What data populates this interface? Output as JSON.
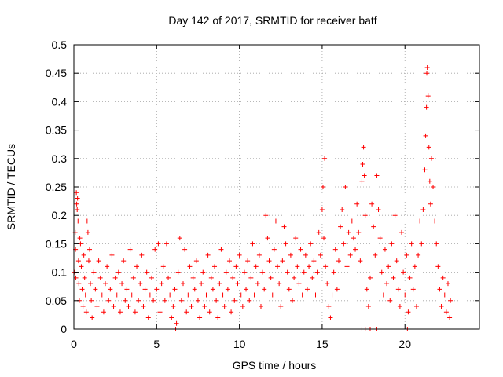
{
  "chart_data": {
    "type": "scatter",
    "title": "Day 142 of 2017, SRMTID for receiver batf",
    "xlabel": "GPS time / hours",
    "ylabel": "SRMTID / TECUs",
    "xlim": [
      0,
      24.5
    ],
    "ylim": [
      0,
      0.5
    ],
    "xticks": [
      0,
      5,
      10,
      15,
      20
    ],
    "yticks": [
      0,
      0.05,
      0.1,
      0.15,
      0.2,
      0.25,
      0.3,
      0.35,
      0.4,
      0.45,
      0.5
    ],
    "xtick_labels": [
      "0",
      "5",
      "10",
      "15",
      "20"
    ],
    "ytick_labels": [
      "0",
      "0.05",
      "0.1",
      "0.15",
      "0.2",
      "0.25",
      "0.3",
      "0.35",
      "0.4",
      "0.45",
      "0.5"
    ],
    "grid": true,
    "marker": "+",
    "color": "#ff0000",
    "series": [
      {
        "name": "SRMTID",
        "points": [
          [
            0.05,
            0.1
          ],
          [
            0.08,
            0.17
          ],
          [
            0.1,
            0.14
          ],
          [
            0.12,
            0.09
          ],
          [
            0.15,
            0.24
          ],
          [
            0.17,
            0.22
          ],
          [
            0.2,
            0.21
          ],
          [
            0.22,
            0.23
          ],
          [
            0.25,
            0.19
          ],
          [
            0.28,
            0.12
          ],
          [
            0.3,
            0.08
          ],
          [
            0.33,
            0.05
          ],
          [
            0.36,
            0.16
          ],
          [
            0.4,
            0.15
          ],
          [
            0.45,
            0.11
          ],
          [
            0.5,
            0.07
          ],
          [
            0.55,
            0.04
          ],
          [
            0.6,
            0.13
          ],
          [
            0.65,
            0.09
          ],
          [
            0.7,
            0.06
          ],
          [
            0.75,
            0.03
          ],
          [
            0.8,
            0.19
          ],
          [
            0.85,
            0.17
          ],
          [
            0.9,
            0.12
          ],
          [
            0.95,
            0.14
          ],
          [
            1.0,
            0.08
          ],
          [
            1.05,
            0.05
          ],
          [
            1.1,
            0.02
          ],
          [
            1.2,
            0.1
          ],
          [
            1.3,
            0.07
          ],
          [
            1.4,
            0.04
          ],
          [
            1.5,
            0.12
          ],
          [
            1.6,
            0.09
          ],
          [
            1.7,
            0.06
          ],
          [
            1.8,
            0.03
          ],
          [
            1.9,
            0.08
          ],
          [
            2.0,
            0.11
          ],
          [
            2.1,
            0.05
          ],
          [
            2.2,
            0.07
          ],
          [
            2.3,
            0.13
          ],
          [
            2.4,
            0.04
          ],
          [
            2.5,
            0.09
          ],
          [
            2.6,
            0.06
          ],
          [
            2.7,
            0.1
          ],
          [
            2.8,
            0.03
          ],
          [
            2.9,
            0.08
          ],
          [
            3.0,
            0.12
          ],
          [
            3.1,
            0.05
          ],
          [
            3.2,
            0.07
          ],
          [
            3.3,
            0.04
          ],
          [
            3.4,
            0.14
          ],
          [
            3.5,
            0.06
          ],
          [
            3.6,
            0.09
          ],
          [
            3.7,
            0.03
          ],
          [
            3.8,
            0.11
          ],
          [
            3.9,
            0.05
          ],
          [
            4.0,
            0.08
          ],
          [
            4.1,
            0.13
          ],
          [
            4.2,
            0.04
          ],
          [
            4.3,
            0.07
          ],
          [
            4.4,
            0.1
          ],
          [
            4.5,
            0.02
          ],
          [
            4.6,
            0.06
          ],
          [
            4.7,
            0.09
          ],
          [
            4.8,
            0.05
          ],
          [
            4.9,
            0.14
          ],
          [
            5.0,
            0.07
          ],
          [
            5.1,
            0.15
          ],
          [
            5.2,
            0.03
          ],
          [
            5.3,
            0.08
          ],
          [
            5.4,
            0.11
          ],
          [
            5.5,
            0.05
          ],
          [
            5.6,
            0.15
          ],
          [
            5.7,
            0.09
          ],
          [
            5.8,
            0.06
          ],
          [
            5.9,
            0.02
          ],
          [
            6.0,
            0.04
          ],
          [
            6.1,
            0.07
          ],
          [
            6.2,
            0.01
          ],
          [
            6.3,
            0.1
          ],
          [
            6.4,
            0.16
          ],
          [
            6.5,
            0.05
          ],
          [
            6.6,
            0.08
          ],
          [
            6.7,
            0.14
          ],
          [
            6.8,
            0.03
          ],
          [
            6.9,
            0.06
          ],
          [
            7.0,
            0.11
          ],
          [
            7.1,
            0.04
          ],
          [
            7.2,
            0.09
          ],
          [
            7.3,
            0.07
          ],
          [
            7.4,
            0.12
          ],
          [
            7.5,
            0.05
          ],
          [
            7.6,
            0.02
          ],
          [
            7.7,
            0.08
          ],
          [
            7.8,
            0.1
          ],
          [
            7.9,
            0.04
          ],
          [
            8.0,
            0.06
          ],
          [
            8.1,
            0.13
          ],
          [
            8.2,
            0.03
          ],
          [
            8.3,
            0.09
          ],
          [
            8.4,
            0.07
          ],
          [
            8.5,
            0.11
          ],
          [
            8.6,
            0.05
          ],
          [
            8.7,
            0.02
          ],
          [
            8.8,
            0.08
          ],
          [
            8.9,
            0.14
          ],
          [
            9.0,
            0.06
          ],
          [
            9.1,
            0.04
          ],
          [
            9.2,
            0.1
          ],
          [
            9.3,
            0.07
          ],
          [
            9.4,
            0.12
          ],
          [
            9.5,
            0.03
          ],
          [
            9.6,
            0.09
          ],
          [
            9.7,
            0.05
          ],
          [
            9.8,
            0.11
          ],
          [
            9.9,
            0.08
          ],
          [
            10.0,
            0.13
          ],
          [
            10.1,
            0.06
          ],
          [
            10.2,
            0.04
          ],
          [
            10.3,
            0.1
          ],
          [
            10.4,
            0.07
          ],
          [
            10.5,
            0.12
          ],
          [
            10.6,
            0.05
          ],
          [
            10.7,
            0.09
          ],
          [
            10.8,
            0.15
          ],
          [
            10.9,
            0.06
          ],
          [
            11.0,
            0.11
          ],
          [
            11.1,
            0.08
          ],
          [
            11.2,
            0.13
          ],
          [
            11.3,
            0.04
          ],
          [
            11.4,
            0.1
          ],
          [
            11.5,
            0.07
          ],
          [
            11.6,
            0.2
          ],
          [
            11.7,
            0.16
          ],
          [
            11.8,
            0.12
          ],
          [
            11.9,
            0.09
          ],
          [
            12.0,
            0.06
          ],
          [
            12.1,
            0.14
          ],
          [
            12.2,
            0.19
          ],
          [
            12.3,
            0.11
          ],
          [
            12.4,
            0.08
          ],
          [
            12.5,
            0.04
          ],
          [
            12.6,
            0.12
          ],
          [
            12.7,
            0.18
          ],
          [
            12.8,
            0.15
          ],
          [
            12.9,
            0.1
          ],
          [
            13.0,
            0.07
          ],
          [
            13.1,
            0.13
          ],
          [
            13.2,
            0.05
          ],
          [
            13.3,
            0.09
          ],
          [
            13.4,
            0.16
          ],
          [
            13.5,
            0.11
          ],
          [
            13.6,
            0.08
          ],
          [
            13.7,
            0.14
          ],
          [
            13.8,
            0.06
          ],
          [
            13.9,
            0.1
          ],
          [
            14.0,
            0.13
          ],
          [
            14.1,
            0.07
          ],
          [
            14.2,
            0.11
          ],
          [
            14.3,
            0.15
          ],
          [
            14.4,
            0.09
          ],
          [
            14.5,
            0.12
          ],
          [
            14.6,
            0.06
          ],
          [
            14.7,
            0.1
          ],
          [
            14.8,
            0.17
          ],
          [
            14.9,
            0.13
          ],
          [
            15.0,
            0.21
          ],
          [
            15.05,
            0.25
          ],
          [
            15.1,
            0.16
          ],
          [
            15.15,
            0.3
          ],
          [
            15.2,
            0.11
          ],
          [
            15.3,
            0.08
          ],
          [
            15.4,
            0.04
          ],
          [
            15.5,
            0.02
          ],
          [
            15.6,
            0.06
          ],
          [
            15.7,
            0.1
          ],
          [
            15.8,
            0.14
          ],
          [
            15.9,
            0.07
          ],
          [
            16.0,
            0.12
          ],
          [
            16.1,
            0.18
          ],
          [
            16.2,
            0.21
          ],
          [
            16.3,
            0.15
          ],
          [
            16.4,
            0.25
          ],
          [
            16.5,
            0.11
          ],
          [
            16.6,
            0.17
          ],
          [
            16.7,
            0.13
          ],
          [
            16.8,
            0.19
          ],
          [
            16.9,
            0.16
          ],
          [
            17.0,
            0.14
          ],
          [
            17.1,
            0.22
          ],
          [
            17.2,
            0.17
          ],
          [
            17.3,
            0.12
          ],
          [
            17.4,
            0.26
          ],
          [
            17.45,
            0.29
          ],
          [
            17.5,
            0.32
          ],
          [
            17.55,
            0.27
          ],
          [
            17.6,
            0.2
          ],
          [
            17.7,
            0.07
          ],
          [
            17.8,
            0.04
          ],
          [
            17.9,
            0.09
          ],
          [
            18.0,
            0.22
          ],
          [
            18.1,
            0.18
          ],
          [
            18.2,
            0.13
          ],
          [
            18.3,
            0.27
          ],
          [
            18.4,
            0.21
          ],
          [
            18.5,
            0.16
          ],
          [
            18.6,
            0.1
          ],
          [
            18.7,
            0.06
          ],
          [
            18.8,
            0.14
          ],
          [
            18.9,
            0.08
          ],
          [
            19.0,
            0.11
          ],
          [
            19.1,
            0.05
          ],
          [
            19.2,
            0.15
          ],
          [
            19.3,
            0.09
          ],
          [
            19.4,
            0.2
          ],
          [
            19.5,
            0.12
          ],
          [
            19.6,
            0.07
          ],
          [
            19.7,
            0.04
          ],
          [
            19.8,
            0.17
          ],
          [
            19.9,
            0.1
          ],
          [
            20.0,
            0.06
          ],
          [
            20.1,
            0.13
          ],
          [
            20.2,
            0.03
          ],
          [
            20.3,
            0.09
          ],
          [
            20.4,
            0.15
          ],
          [
            20.5,
            0.07
          ],
          [
            20.6,
            0.11
          ],
          [
            20.7,
            0.04
          ],
          [
            20.8,
            0.13
          ],
          [
            20.9,
            0.19
          ],
          [
            21.0,
            0.15
          ],
          [
            21.1,
            0.21
          ],
          [
            21.2,
            0.28
          ],
          [
            21.25,
            0.34
          ],
          [
            21.3,
            0.39
          ],
          [
            21.32,
            0.45
          ],
          [
            21.35,
            0.46
          ],
          [
            21.4,
            0.41
          ],
          [
            21.45,
            0.32
          ],
          [
            21.5,
            0.26
          ],
          [
            21.55,
            0.22
          ],
          [
            21.6,
            0.3
          ],
          [
            21.7,
            0.25
          ],
          [
            21.8,
            0.19
          ],
          [
            21.9,
            0.15
          ],
          [
            22.0,
            0.11
          ],
          [
            22.1,
            0.07
          ],
          [
            22.2,
            0.04
          ],
          [
            22.3,
            0.09
          ],
          [
            22.4,
            0.06
          ],
          [
            22.5,
            0.03
          ],
          [
            22.6,
            0.08
          ],
          [
            22.7,
            0.02
          ],
          [
            22.75,
            0.05
          ],
          [
            17.4,
            0.0
          ],
          [
            17.6,
            0.0
          ],
          [
            17.9,
            0.0
          ],
          [
            18.3,
            0.0
          ],
          [
            20.15,
            0.0
          ],
          [
            6.15,
            0.0
          ]
        ]
      }
    ]
  }
}
